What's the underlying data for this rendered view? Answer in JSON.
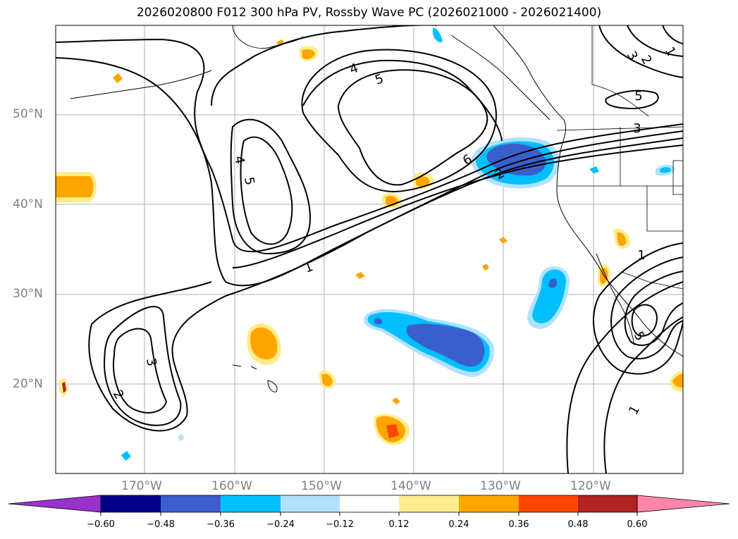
{
  "title": "2026020800 F012 300 hPa PV, Rossby Wave PC (2026021000 - 2026021400)",
  "lat_labels": [
    "50°N",
    "40°N",
    "30°N",
    "20°N"
  ],
  "lon_labels": [
    "170°W",
    "160°W",
    "150°W",
    "140°W",
    "130°W",
    "120°W"
  ],
  "colorbar": {
    "ticks": [
      "−0.60",
      "−0.48",
      "−0.36",
      "−0.24",
      "−0.12",
      "0.12",
      "0.24",
      "0.36",
      "0.48",
      "0.60"
    ],
    "colors": [
      "#9932cc",
      "#00008b",
      "#3a5fcd",
      "#00bfff",
      "#b0e2ff",
      "#ffffff",
      "#ffec8b",
      "#ffa500",
      "#ff4500",
      "#b22222",
      "#ff86aa"
    ]
  },
  "contour_labels": [
    "1",
    "1",
    "1",
    "2",
    "2",
    "3",
    "3",
    "4",
    "4",
    "5",
    "5",
    "5",
    "5",
    "6",
    "1",
    "2",
    "3"
  ],
  "colors": {
    "negative_light": "#b0e2ff",
    "negative_mid": "#00bfff",
    "negative_dark": "#3a5fcd",
    "positive_light": "#ffec8b",
    "positive_mid": "#ffa500",
    "positive_dark": "#ff4500"
  }
}
